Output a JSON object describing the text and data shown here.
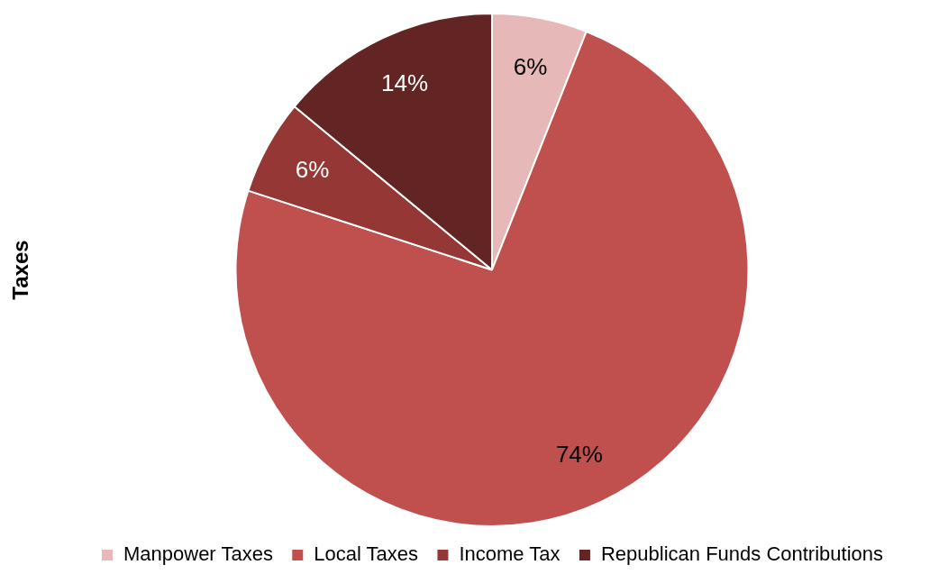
{
  "chart_data": {
    "type": "pie",
    "ylabel": "Taxes",
    "categories": [
      "Manpower Taxes",
      "Local Taxes",
      "Income Tax",
      "Republican Funds Contributions"
    ],
    "values": [
      6,
      74,
      6,
      14
    ],
    "colors": [
      "#e6b8b7",
      "#c0504d",
      "#953735",
      "#632523"
    ],
    "value_labels": [
      "6%",
      "74%",
      "6%",
      "14%"
    ],
    "legend": "bottom"
  }
}
